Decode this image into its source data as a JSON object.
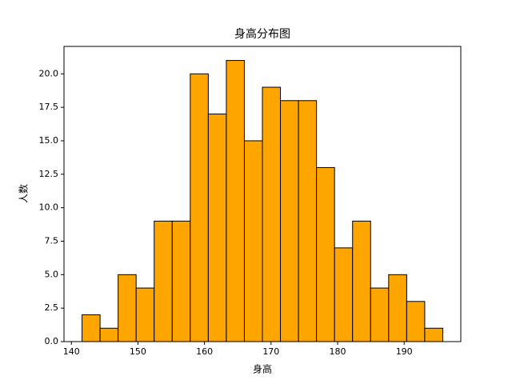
{
  "chart_data": {
    "type": "histogram",
    "title": "身高分布图",
    "x_label": "身高",
    "y_label": "人数",
    "bins": [
      141.6,
      144.31,
      147.02,
      149.73,
      152.44,
      155.15,
      157.86,
      160.57,
      163.28,
      165.99,
      168.7,
      171.41,
      174.12,
      176.83,
      179.54,
      182.25,
      184.96,
      187.67,
      190.38,
      193.09,
      195.8
    ],
    "values": [
      2,
      1,
      5,
      4,
      9,
      9,
      20,
      17,
      21,
      15,
      19,
      18,
      18,
      13,
      7,
      9,
      4,
      5,
      3,
      1
    ],
    "color": "#ffa500",
    "edgecolor": "#000000",
    "xlim": [
      138.89,
      198.51
    ],
    "xticks": [
      140,
      150,
      160,
      170,
      180,
      190
    ],
    "ylim": [
      0,
      22.05
    ],
    "yticks": [
      {
        "value": 0,
        "label": "0.0"
      },
      {
        "value": 2.5,
        "label": "2.5"
      },
      {
        "value": 5,
        "label": "5.0"
      },
      {
        "value": 7.5,
        "label": "7.5"
      },
      {
        "value": 10,
        "label": "10.0"
      },
      {
        "value": 12.5,
        "label": "12.5"
      },
      {
        "value": 15,
        "label": "15.0"
      },
      {
        "value": 17.5,
        "label": "17.5"
      },
      {
        "value": 20,
        "label": "20.0"
      }
    ]
  }
}
